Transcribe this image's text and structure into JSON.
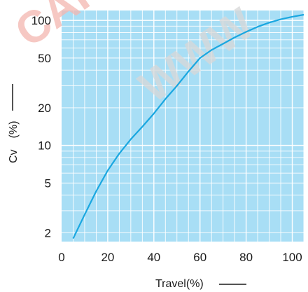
{
  "chart_data": {
    "type": "line",
    "title": "",
    "xlabel": "Travel(%)",
    "ylabel": "Cv　(%)",
    "xlim": [
      0,
      105
    ],
    "ylim": [
      1.7,
      120
    ],
    "y_scale": "log",
    "x_ticks": [
      "0",
      "20",
      "40",
      "60",
      "80",
      "100"
    ],
    "y_ticks": [
      "2",
      "5",
      "10",
      "20",
      "50",
      "100"
    ],
    "grid": true,
    "background_color": "#a8def5",
    "grid_color": "#ffffff",
    "line_color": "#1aa7e0",
    "watermark_color": "#f4b6b0",
    "series": [
      {
        "x": [
          5,
          10,
          15,
          20,
          25,
          30,
          35,
          40,
          45,
          50,
          55,
          60,
          65,
          70,
          75,
          80,
          85,
          90,
          95,
          100,
          105
        ],
        "y": [
          1.8,
          2.8,
          4.3,
          6.3,
          8.6,
          11.2,
          14.1,
          18.0,
          23.5,
          30.0,
          39.0,
          50.0,
          58.0,
          65.0,
          73.0,
          81.0,
          89.0,
          96.0,
          102.0,
          107.0,
          111.0
        ]
      }
    ]
  }
}
